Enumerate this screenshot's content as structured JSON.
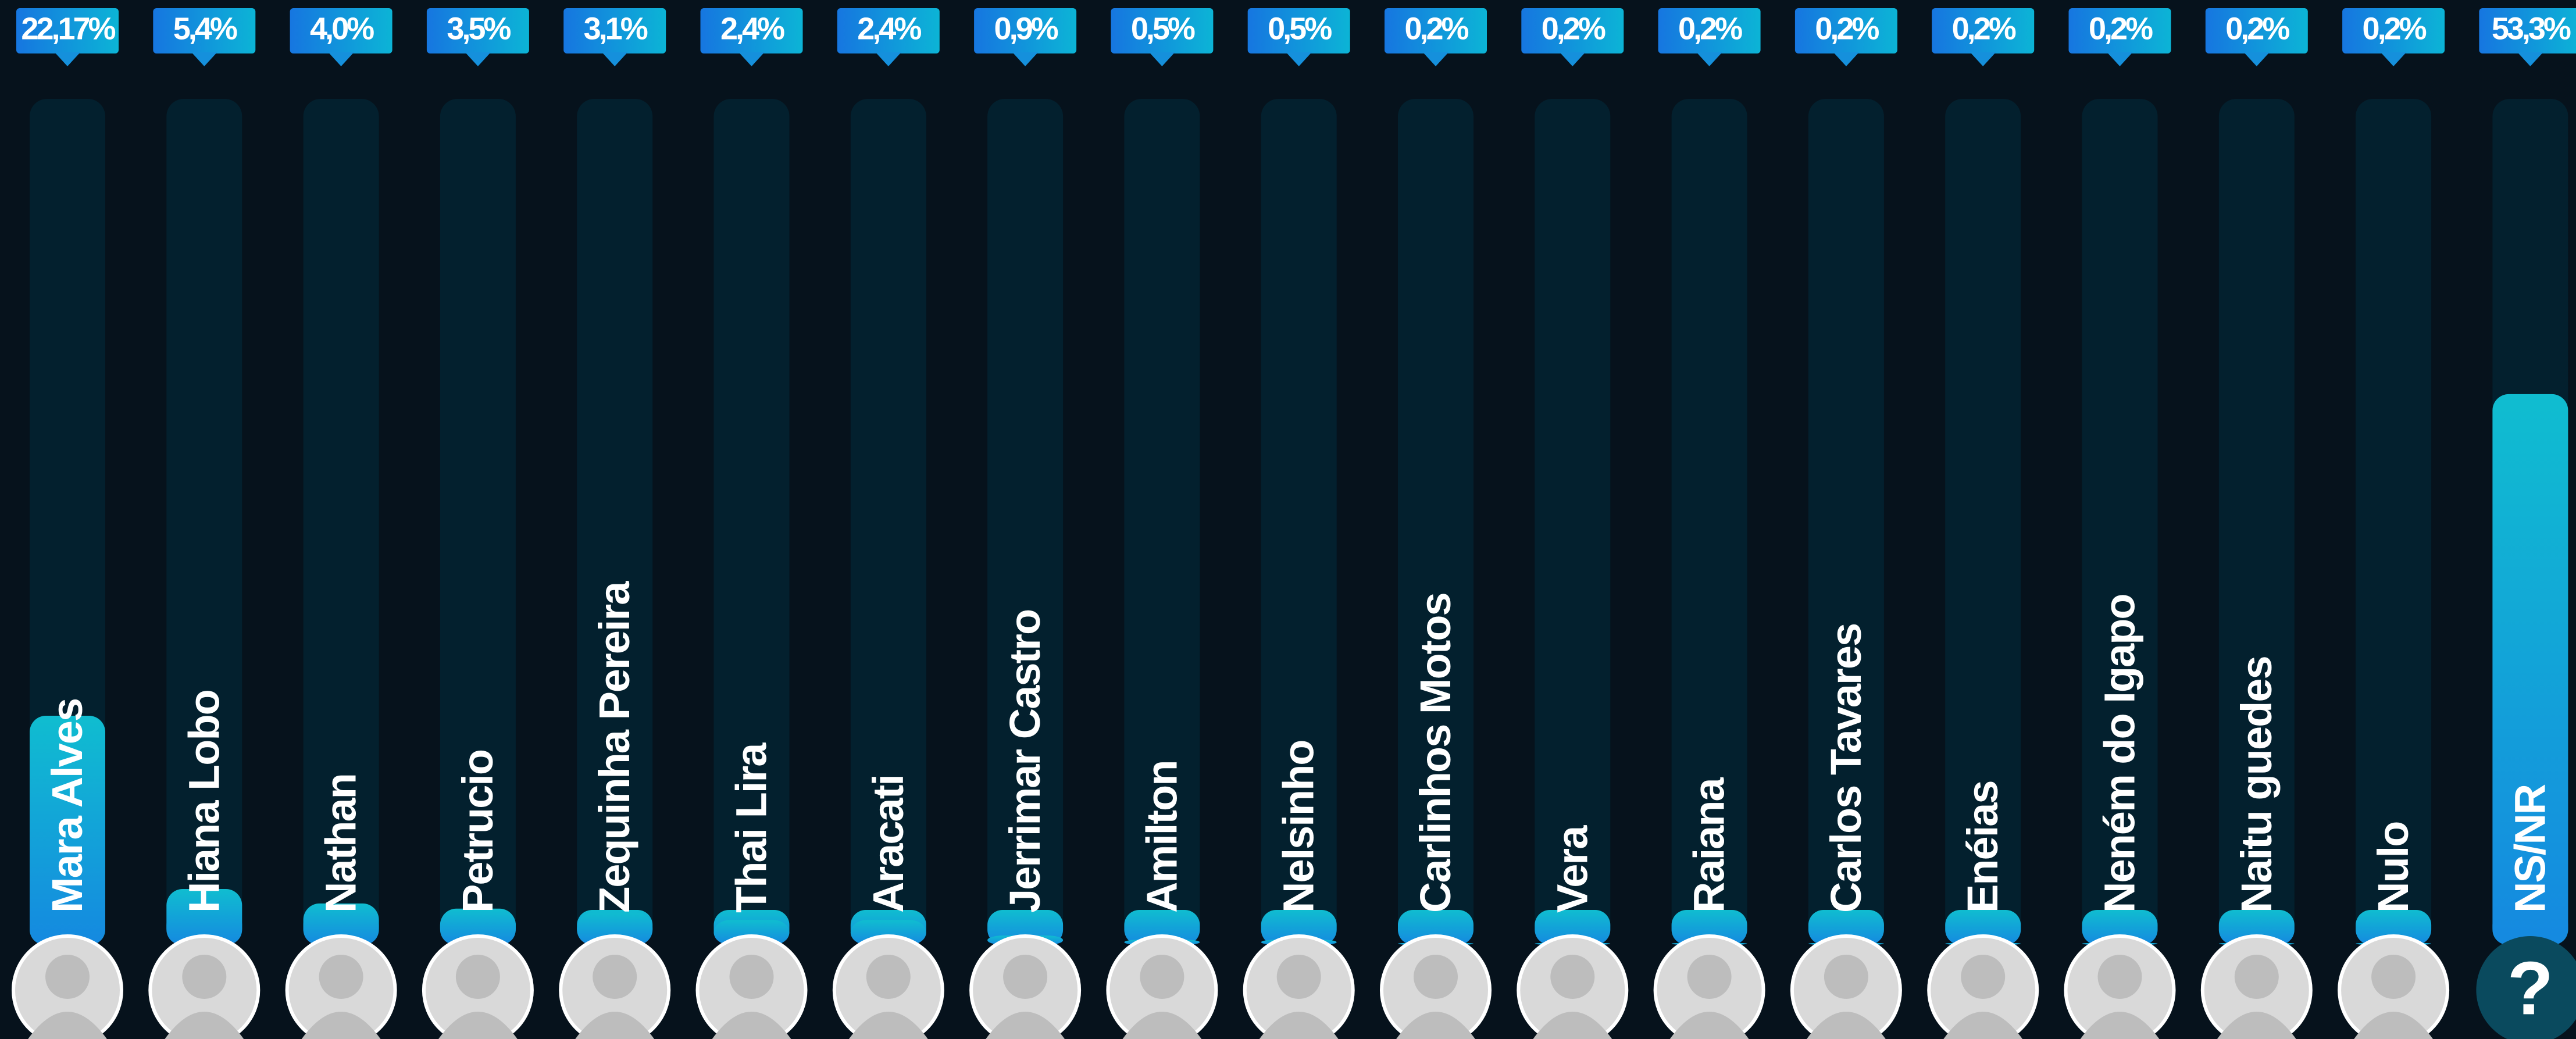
{
  "chart_data": {
    "type": "bar",
    "categories": [
      "Mara Alves",
      "Hiana Lobo",
      "Nathan",
      "Petrucio",
      "Zequinha Pereira",
      "Thai Lira",
      "Aracati",
      "Jerrimar Castro",
      "Amilton",
      "Nelsinho",
      "Carlinhos Motos",
      "Vera",
      "Raiana",
      "Carlos Tavares",
      "Enéias",
      "Neném do Igapo",
      "Naitu guedes",
      "Nulo",
      "NS/NR"
    ],
    "values": [
      22.17,
      5.4,
      4.0,
      3.5,
      3.1,
      2.4,
      2.4,
      0.9,
      0.5,
      0.5,
      0.2,
      0.2,
      0.2,
      0.2,
      0.2,
      0.2,
      0.2,
      0.2,
      53.3
    ],
    "value_labels": [
      "22,17%",
      "5,4%",
      "4,0%",
      "3,5%",
      "3,1%",
      "2,4%",
      "2,4%",
      "0,9%",
      "0,5%",
      "0,5%",
      "0,2%",
      "0,2%",
      "0,2%",
      "0,2%",
      "0,2%",
      "0,2%",
      "0,2%",
      "0,2%",
      "53,3%"
    ],
    "color": "#1597dc",
    "unknown_symbol": "?"
  }
}
